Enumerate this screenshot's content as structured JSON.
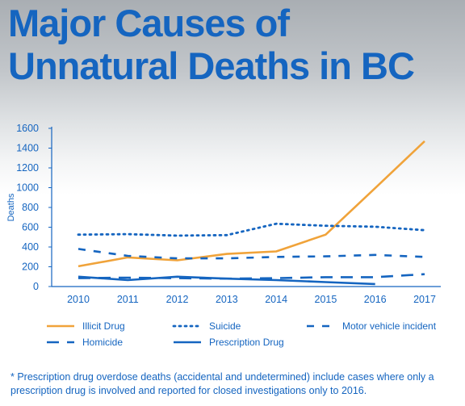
{
  "header": {
    "title_line1": "Major Causes of",
    "title_line2": "Unnatural Deaths in BC"
  },
  "footnote": "* Prescription drug overdose deaths (accidental and undetermined) include cases where only a prescription drug is involved and reported for closed investigations only to 2016.",
  "colors": {
    "axis": "#1565c0",
    "orange": "#f0a33a",
    "blue": "#1565c0"
  },
  "chart_data": {
    "type": "line",
    "title": "",
    "xlabel": "",
    "ylabel": "Deaths",
    "ylim": [
      0,
      1600
    ],
    "yticks": [
      0,
      200,
      400,
      600,
      800,
      1000,
      1200,
      1400,
      1600
    ],
    "x": [
      2010,
      2011,
      2012,
      2013,
      2014,
      2015,
      2016,
      2017
    ],
    "xtick_labels": [
      "2010",
      "2011",
      "2012",
      "2013",
      "2014",
      "2015",
      "2016",
      "2017"
    ],
    "legend_position": "bottom",
    "series": [
      {
        "name": "Illicit Drug",
        "style": "solid",
        "color": "#f0a33a",
        "values": [
          205,
          295,
          265,
          330,
          355,
          525,
          995,
          1470
        ]
      },
      {
        "name": "Suicide",
        "style": "dotted",
        "color": "#1565c0",
        "values": [
          525,
          530,
          515,
          520,
          635,
          615,
          605,
          570
        ]
      },
      {
        "name": "Motor vehicle incident",
        "style": "dashed",
        "color": "#1565c0",
        "values": [
          380,
          310,
          285,
          285,
          300,
          305,
          320,
          300
        ]
      },
      {
        "name": "Homicide",
        "style": "longdash",
        "color": "#1565c0",
        "values": [
          85,
          90,
          85,
          80,
          85,
          95,
          95,
          125
        ]
      },
      {
        "name": "Prescription Drug",
        "style": "solid",
        "color": "#1565c0",
        "values": [
          100,
          65,
          100,
          80,
          65,
          45,
          25,
          null
        ]
      }
    ]
  }
}
